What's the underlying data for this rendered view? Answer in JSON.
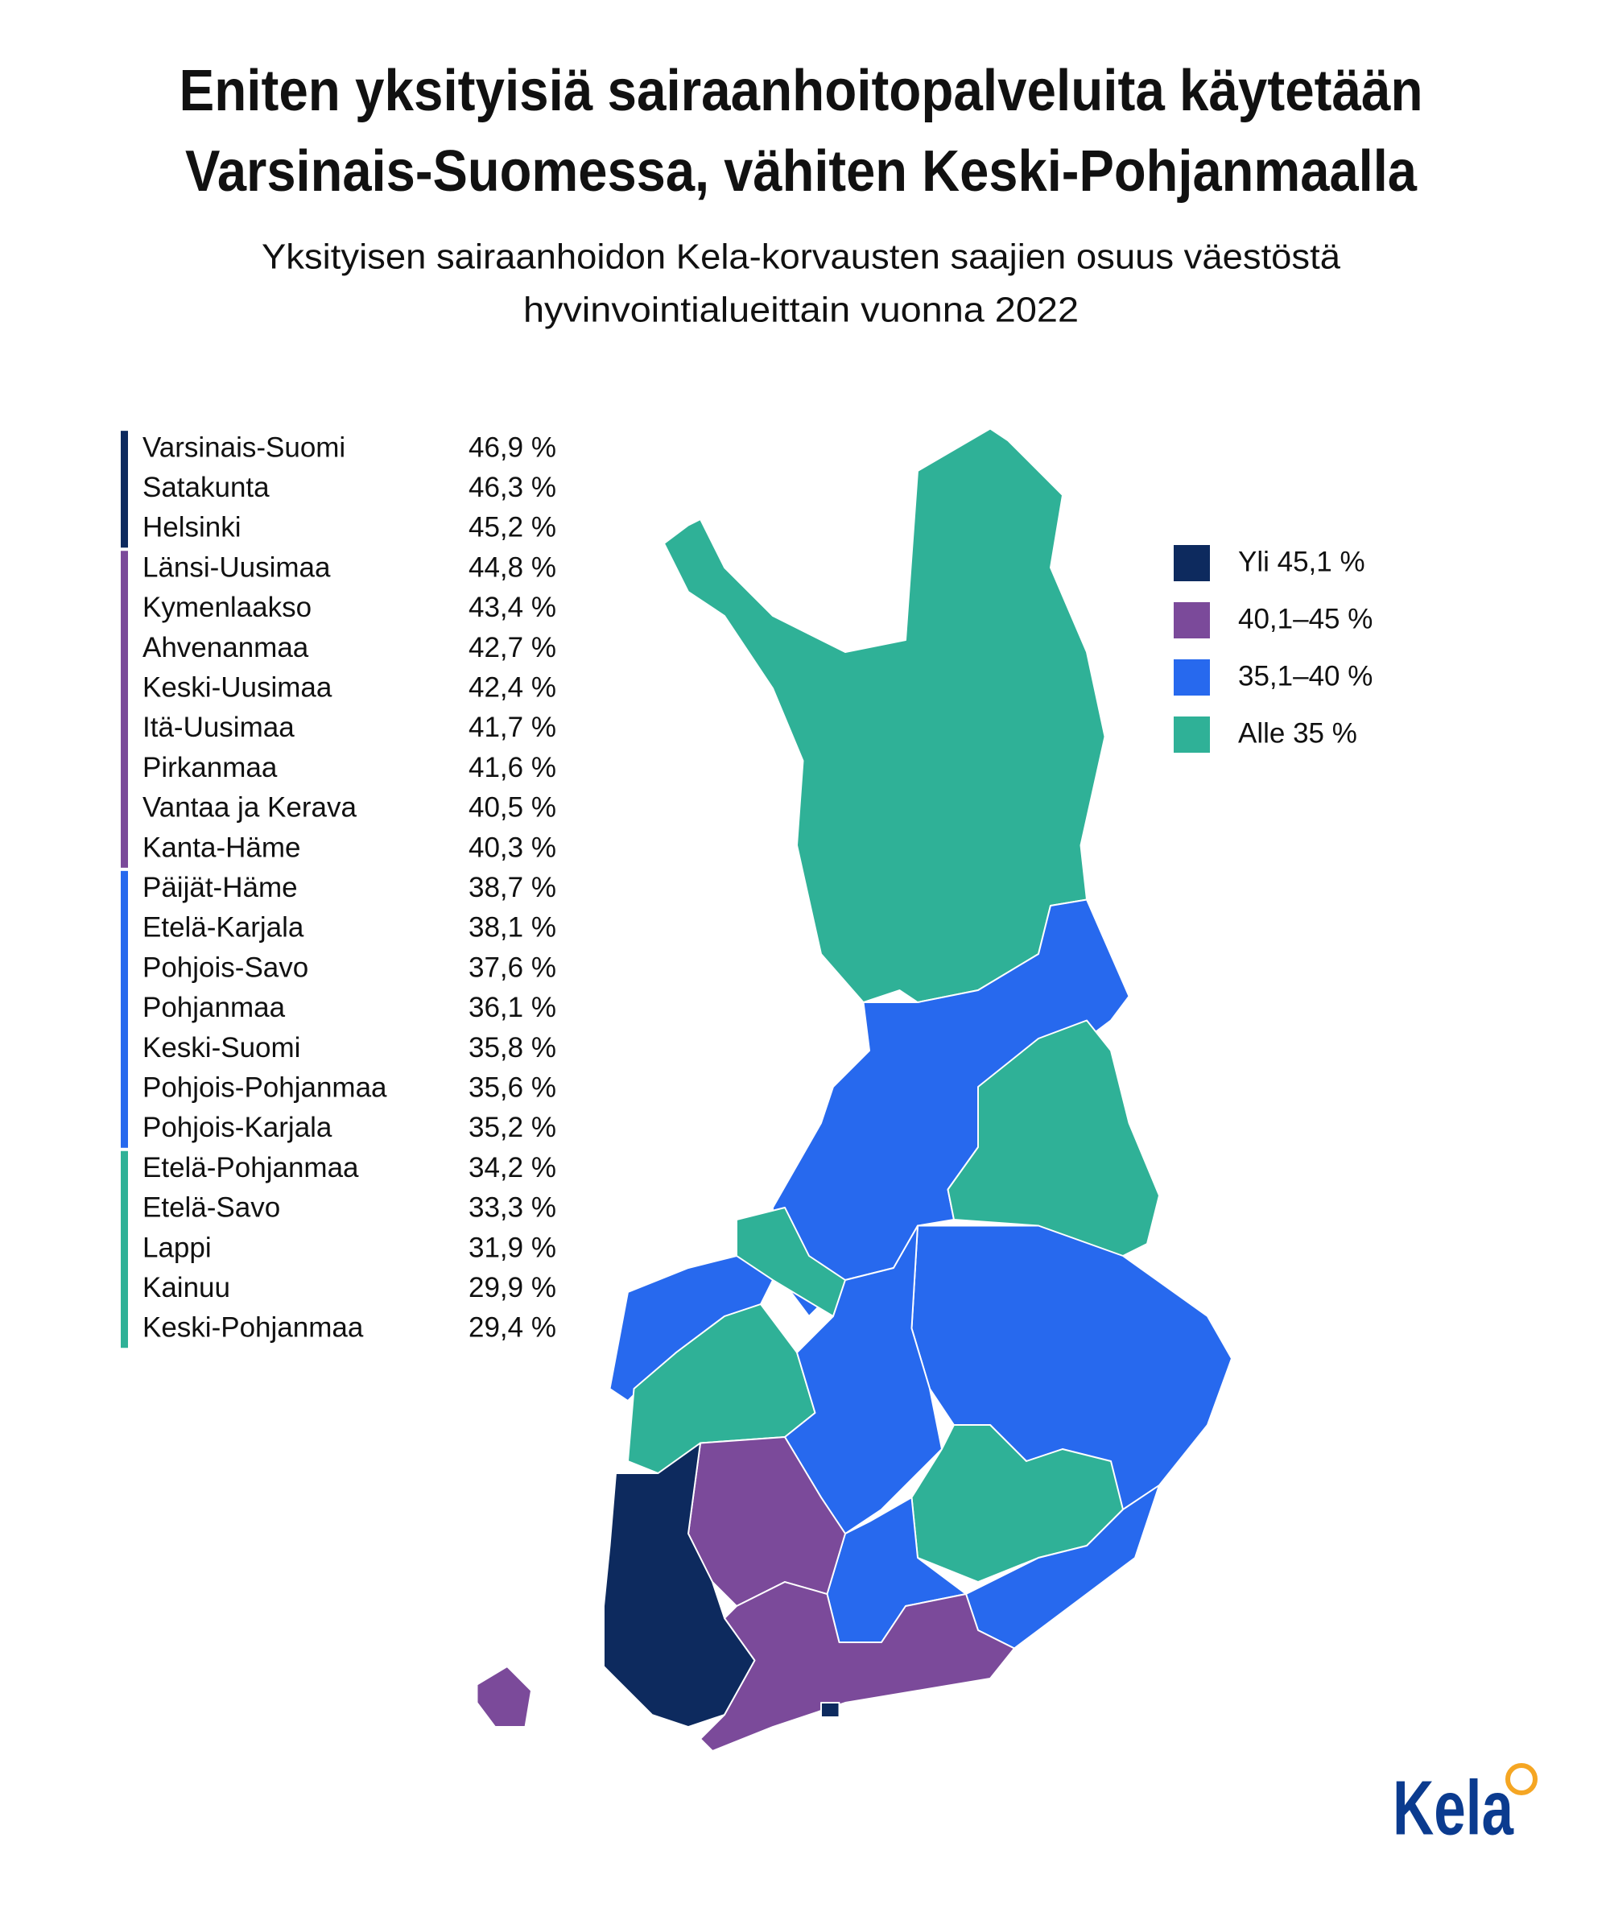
{
  "header": {
    "title": [
      "Eniten yksityisiä sairaanhoitopalveluita käytetään",
      "Varsinais-Suomessa, vähiten Keski-Pohjanmaalla"
    ],
    "subtitle": [
      "Yksityisen sairaanhoidon Kela-korvausten saajien osuus väestöstä",
      "hyvinvointialueittain vuonna 2022"
    ]
  },
  "groups": [
    {
      "label": "Yli 45,1 %",
      "color": "#0d2a5e",
      "regions": [
        {
          "name": "Varsinais-Suomi",
          "value": "46,9 %"
        },
        {
          "name": "Satakunta",
          "value": "46,3 %"
        },
        {
          "name": "Helsinki",
          "value": "45,2 %"
        }
      ]
    },
    {
      "label": "40,1–45 %",
      "color": "#7b4a9a",
      "regions": [
        {
          "name": "Länsi-Uusimaa",
          "value": "44,8 %"
        },
        {
          "name": "Kymenlaakso",
          "value": "43,4 %"
        },
        {
          "name": "Ahvenanmaa",
          "value": "42,7 %"
        },
        {
          "name": "Keski-Uusimaa",
          "value": "42,4 %"
        },
        {
          "name": "Itä-Uusimaa",
          "value": "41,7 %"
        },
        {
          "name": "Pirkanmaa",
          "value": "41,6 %"
        },
        {
          "name": "Vantaa ja Kerava",
          "value": "40,5 %"
        },
        {
          "name": "Kanta-Häme",
          "value": "40,3 %"
        }
      ]
    },
    {
      "label": "35,1–40 %",
      "color": "#2769ee",
      "regions": [
        {
          "name": "Päijät-Häme",
          "value": "38,7 %"
        },
        {
          "name": "Etelä-Karjala",
          "value": "38,1 %"
        },
        {
          "name": "Pohjois-Savo",
          "value": "37,6 %"
        },
        {
          "name": "Pohjanmaa",
          "value": "36,1 %"
        },
        {
          "name": "Keski-Suomi",
          "value": "35,8 %"
        },
        {
          "name": "Pohjois-Pohjanmaa",
          "value": "35,6 %"
        },
        {
          "name": "Pohjois-Karjala",
          "value": "35,2 %"
        }
      ]
    },
    {
      "label": "Alle 35 %",
      "color": "#2fb197",
      "regions": [
        {
          "name": "Etelä-Pohjanmaa",
          "value": "34,2 %"
        },
        {
          "name": "Etelä-Savo",
          "value": "33,3 %"
        },
        {
          "name": "Lappi",
          "value": "31,9 %"
        },
        {
          "name": "Kainuu",
          "value": "29,9 %"
        },
        {
          "name": "Keski-Pohjanmaa",
          "value": "29,4 %"
        }
      ]
    }
  ],
  "logo": "Kela"
}
